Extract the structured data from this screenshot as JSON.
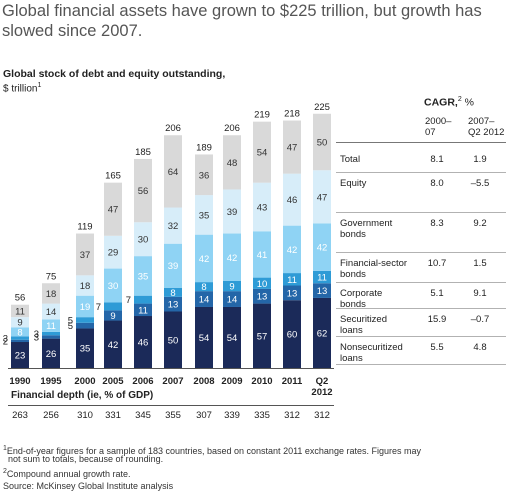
{
  "headline": "Global financial assets have grown to $225 trillion, but growth has slowed since 2007.",
  "chart_data": {
    "type": "stacked-bar",
    "title": "Global stock of debt and equity outstanding,",
    "units": "$ trillion",
    "units_note": "1",
    "categories": [
      "1990",
      "1995",
      "2000",
      "2005",
      "2006",
      "2007",
      "2008",
      "2009",
      "2010",
      "2011",
      "Q2 2012"
    ],
    "category_lines": [
      [
        "1990"
      ],
      [
        "1995"
      ],
      [
        "2000"
      ],
      [
        "2005"
      ],
      [
        "2006"
      ],
      [
        "2007"
      ],
      [
        "2008"
      ],
      [
        "2009"
      ],
      [
        "2010"
      ],
      [
        "2011"
      ],
      [
        "Q2",
        "2012"
      ]
    ],
    "totals": [
      56,
      75,
      119,
      165,
      185,
      206,
      189,
      206,
      219,
      218,
      225
    ],
    "series": [
      {
        "name": "Nonsecuritized loans",
        "color": "#1b2a59",
        "text_color": "#ffffff",
        "values": [
          23,
          26,
          35,
          42,
          46,
          50,
          54,
          54,
          57,
          60,
          62
        ]
      },
      {
        "name": "Securitized loans",
        "color": "#2466a8",
        "text_color": "#ffffff",
        "values": [
          2,
          3,
          5,
          9,
          11,
          13,
          14,
          14,
          13,
          13,
          13
        ]
      },
      {
        "name": "Corporate bonds",
        "color": "#2e9bd6",
        "text_color": "#ffffff",
        "values": [
          3,
          3,
          5,
          7,
          7,
          8,
          8,
          9,
          10,
          11,
          11
        ]
      },
      {
        "name": "Financial-sector bonds",
        "color": "#8fd3f4",
        "text_color": "#ffffff",
        "values": [
          8,
          11,
          19,
          30,
          35,
          39,
          42,
          42,
          41,
          42,
          42
        ]
      },
      {
        "name": "Government bonds",
        "color": "#d7edf9",
        "text_color": "#333333",
        "values": [
          9,
          14,
          18,
          29,
          30,
          32,
          35,
          39,
          43,
          46,
          47
        ]
      },
      {
        "name": "Equity",
        "color": "#d9d9d9",
        "text_color": "#333333",
        "values": [
          11,
          18,
          37,
          47,
          56,
          64,
          36,
          48,
          54,
          47,
          50
        ]
      }
    ],
    "ylim": [
      0,
      230
    ],
    "cagr": {
      "title": "CAGR,",
      "title_note": "2",
      "title_unit": "%",
      "col1_header": [
        "2000–",
        "07"
      ],
      "col2_header": [
        "2007–",
        "Q2 2012"
      ],
      "rows": [
        {
          "label": [
            "Total"
          ],
          "c1": "8.1",
          "c2": "1.9"
        },
        {
          "label": [
            "Equity"
          ],
          "c1": "8.0",
          "c2": "–5.5"
        },
        {
          "label": [
            "Government",
            "bonds"
          ],
          "c1": "8.3",
          "c2": "9.2"
        },
        {
          "label": [
            "Financial-sector",
            "bonds"
          ],
          "c1": "10.7",
          "c2": "1.5"
        },
        {
          "label": [
            "Corporate",
            "bonds"
          ],
          "c1": "5.1",
          "c2": "9.1"
        },
        {
          "label": [
            "Securitized",
            "loans"
          ],
          "c1": "15.9",
          "c2": "–0.7"
        },
        {
          "label": [
            "Nonsecuritized",
            "loans"
          ],
          "c1": "5.5",
          "c2": "4.8"
        }
      ]
    },
    "financial_depth": {
      "title": "Financial depth (ie, % of GDP)",
      "values": [
        263,
        256,
        310,
        331,
        345,
        355,
        307,
        339,
        335,
        312,
        312
      ]
    }
  },
  "footnotes": {
    "f1_mark": "1",
    "f1": "End-of-year figures for a sample of 183 countries, based on constant 2011 exchange rates. Figures may",
    "f1b": "not sum to totals, because of rounding.",
    "f2_mark": "2",
    "f2": "Compound annual growth rate.",
    "source": "Source: McKinsey Global Institute analysis"
  }
}
